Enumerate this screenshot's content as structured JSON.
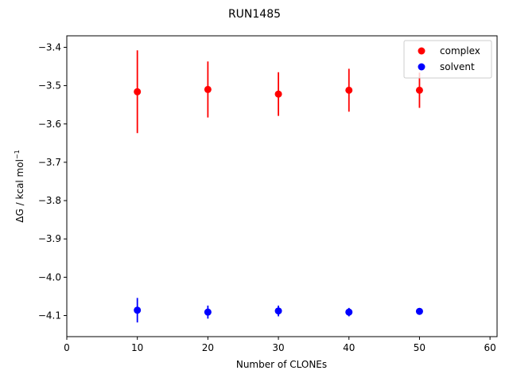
{
  "chart_data": {
    "type": "scatter",
    "title": "RUN1485",
    "xlabel": "Number of CLONEs",
    "ylabel_main": "ΔG / kcal mol",
    "ylabel_sup": "−1",
    "xlim": [
      0,
      61
    ],
    "ylim": [
      -4.155,
      -3.37
    ],
    "x_ticks": [
      0,
      10,
      20,
      30,
      40,
      50,
      60
    ],
    "x_tick_labels": [
      "0",
      "10",
      "20",
      "30",
      "40",
      "50",
      "60"
    ],
    "y_ticks": [
      -3.4,
      -3.5,
      -3.6,
      -3.7,
      -3.8,
      -3.9,
      -4.0,
      -4.1
    ],
    "y_tick_labels": [
      "−3.4",
      "−3.5",
      "−3.6",
      "−3.7",
      "−3.8",
      "−3.9",
      "−4.0",
      "−4.1"
    ],
    "grid": false,
    "legend_position": "top-right",
    "series": [
      {
        "name": "complex",
        "color": "#ff0000",
        "x": [
          10,
          20,
          30,
          40,
          50
        ],
        "y": [
          -3.516,
          -3.51,
          -3.522,
          -3.512,
          -3.512
        ],
        "err": [
          0.108,
          0.073,
          0.057,
          0.056,
          0.046
        ]
      },
      {
        "name": "solvent",
        "color": "#0000ff",
        "x": [
          10,
          20,
          30,
          40,
          50
        ],
        "y": [
          -4.086,
          -4.091,
          -4.088,
          -4.091,
          -4.089
        ],
        "err": [
          0.032,
          0.017,
          0.014,
          0.011,
          0.008
        ]
      }
    ]
  }
}
